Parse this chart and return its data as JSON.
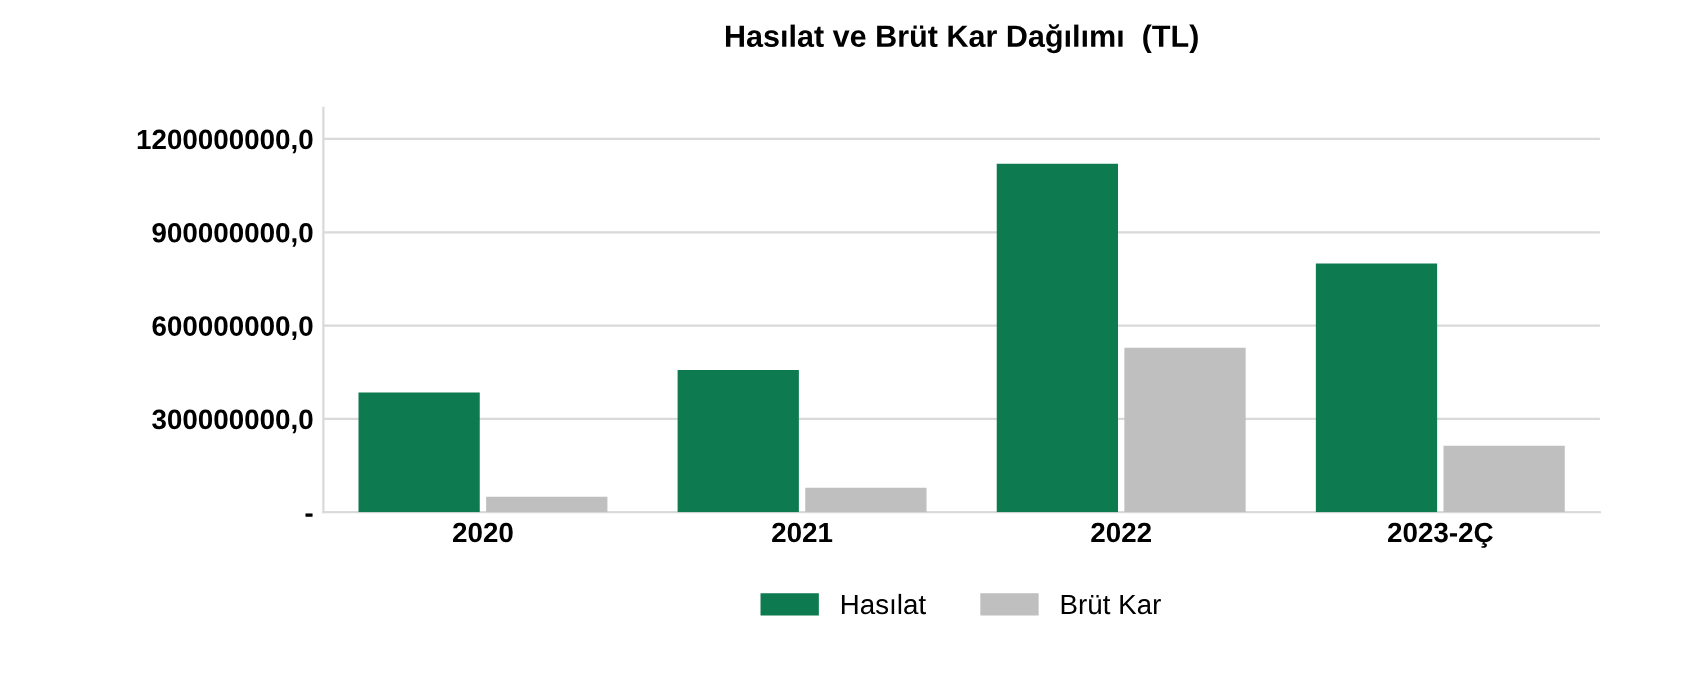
{
  "chart_data": {
    "type": "bar",
    "title": "Hasılat ve Brüt Kar Dağılımı  (TL)",
    "categories": [
      "2020",
      "2021",
      "2022",
      "2023-2Ç"
    ],
    "series": [
      {
        "name": "Hasılat",
        "color": "#0e7a50",
        "values": [
          385000000,
          457000000,
          1120000000,
          800000000
        ]
      },
      {
        "name": "Brüt Kar",
        "color": "#bfbfbf",
        "values": [
          50000000,
          79000000,
          529000000,
          214000000
        ]
      }
    ],
    "ylim": [
      0,
      1300000000
    ],
    "yticks": [
      {
        "value": 0,
        "label": "-"
      },
      {
        "value": 300000000,
        "label": "300000000,0"
      },
      {
        "value": 600000000,
        "label": "600000000,0"
      },
      {
        "value": 900000000,
        "label": "900000000,0"
      },
      {
        "value": 1200000000,
        "label": "1200000000,0"
      }
    ],
    "grid": "y",
    "legend": "bottom"
  }
}
